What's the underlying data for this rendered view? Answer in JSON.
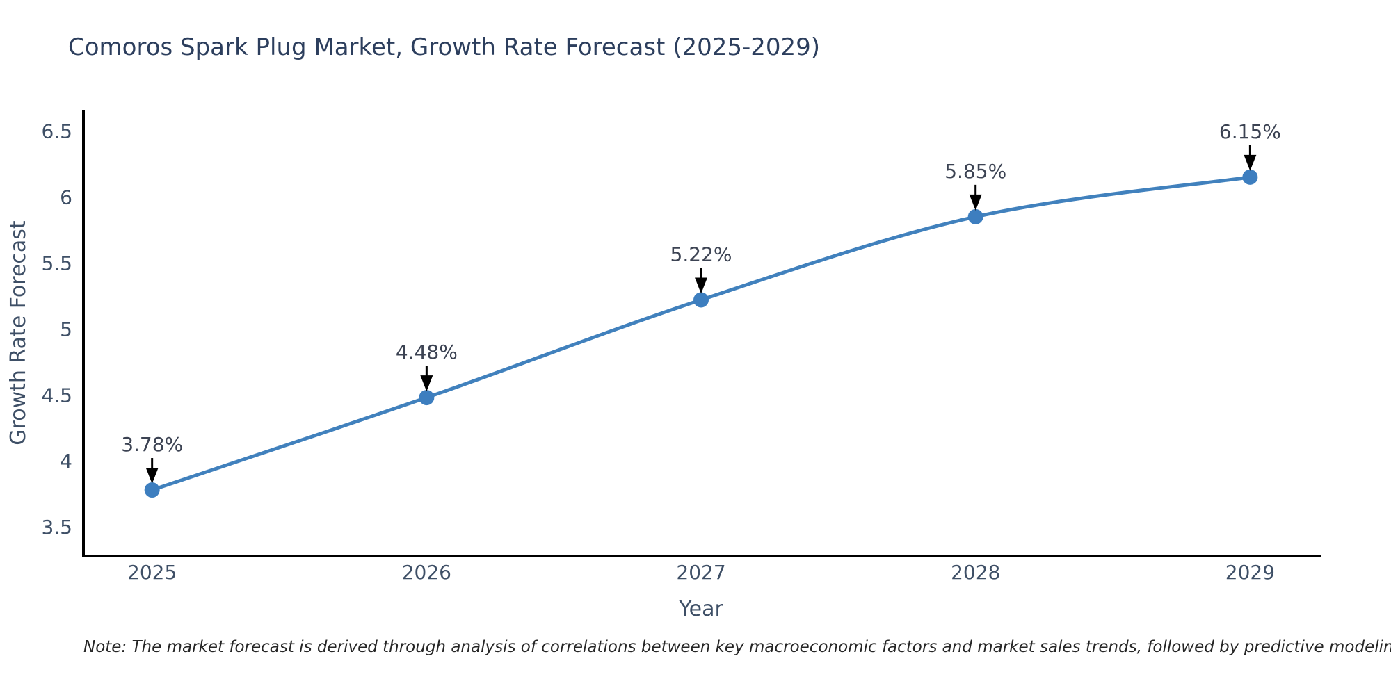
{
  "title": "Comoros Spark Plug Market, Growth Rate Forecast (2025-2029)",
  "note": "Note: The market forecast is derived through analysis of correlations between key macroeconomic factors and market sales trends, followed by predictive modeling to project future sales",
  "chart_data": {
    "type": "line",
    "title": "Comoros Spark Plug Market, Growth Rate Forecast (2025-2029)",
    "categories": [
      "2025",
      "2026",
      "2027",
      "2028",
      "2029"
    ],
    "x": [
      2025,
      2026,
      2027,
      2028,
      2029
    ],
    "values": [
      3.78,
      4.48,
      5.22,
      5.85,
      6.15
    ],
    "point_labels": [
      "3.78%",
      "4.48%",
      "5.22%",
      "5.85%",
      "6.15%"
    ],
    "xlabel": "Year",
    "ylabel": "Growth Rate Forecast",
    "xlim": [
      2024.75,
      2029.26
    ],
    "ylim": [
      3.28,
      6.66
    ],
    "yticks": [
      3.5,
      4,
      4.5,
      5,
      5.5,
      6,
      6.5
    ],
    "ytick_labels": [
      "3.5",
      "4",
      "4.5",
      "5",
      "5.5",
      "6",
      "6.5"
    ],
    "grid": false,
    "legend": "none",
    "line_shape": "spline",
    "colors": {
      "line": "#4181bd",
      "marker": "#3d7ebf",
      "axis": "#000000",
      "tick_text": "#3e4f66",
      "axis_title_text": "#3e4f66",
      "annotation_text": "#3c4353",
      "annotation_arrow": "#000000",
      "title_text": "#2c3e5d",
      "background": "#ffffff"
    }
  }
}
